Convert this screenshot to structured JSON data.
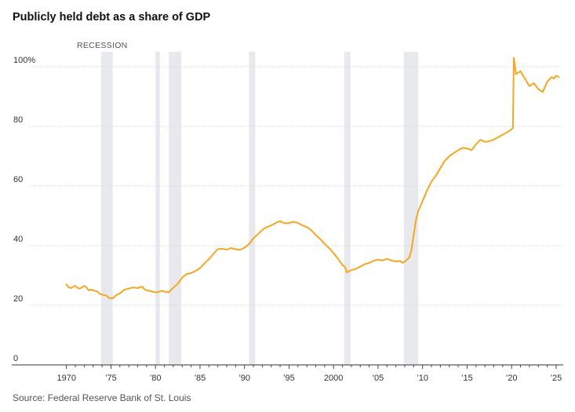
{
  "chart_data": {
    "type": "line",
    "title": "Publicly held debt as a share of GDP",
    "source": "Source: Federal Reserve Bank of St. Louis",
    "recession_label": "RECESSION",
    "xlim": [
      1966.5,
      2025.8
    ],
    "ylim": [
      0,
      105
    ],
    "y_ticks": [
      {
        "value": 0,
        "label": "0"
      },
      {
        "value": 20,
        "label": "20"
      },
      {
        "value": 40,
        "label": "40"
      },
      {
        "value": 60,
        "label": "60"
      },
      {
        "value": 80,
        "label": "80"
      },
      {
        "value": 100,
        "label": "100%"
      }
    ],
    "x_ticks": [
      {
        "value": 1970,
        "label": "1970"
      },
      {
        "value": 1975,
        "label": "’75"
      },
      {
        "value": 1980,
        "label": "’80"
      },
      {
        "value": 1985,
        "label": "’85"
      },
      {
        "value": 1990,
        "label": "’90"
      },
      {
        "value": 1995,
        "label": "’95"
      },
      {
        "value": 2000,
        "label": "2000"
      },
      {
        "value": 2005,
        "label": "’05"
      },
      {
        "value": 2010,
        "label": "’10"
      },
      {
        "value": 2015,
        "label": "’15"
      },
      {
        "value": 2020,
        "label": "’20"
      },
      {
        "value": 2025,
        "label": "’25"
      }
    ],
    "recessions": [
      [
        1973.9,
        1975.2
      ],
      [
        1980.0,
        1980.5
      ],
      [
        1981.5,
        1982.9
      ],
      [
        1990.5,
        1991.2
      ],
      [
        2001.2,
        2001.9
      ],
      [
        2007.9,
        2009.5
      ]
    ],
    "series": [
      {
        "name": "Publicly held debt as a share of GDP",
        "color": "#f5a623",
        "points": [
          [
            1970.0,
            27.0
          ],
          [
            1970.25,
            26.0
          ],
          [
            1970.5,
            25.8
          ],
          [
            1970.75,
            26.2
          ],
          [
            1971.0,
            26.5
          ],
          [
            1971.25,
            25.8
          ],
          [
            1971.5,
            25.6
          ],
          [
            1971.75,
            26.0
          ],
          [
            1972.0,
            26.5
          ],
          [
            1972.25,
            26.0
          ],
          [
            1972.5,
            25.0
          ],
          [
            1972.75,
            25.3
          ],
          [
            1973.0,
            25.0
          ],
          [
            1973.5,
            24.6
          ],
          [
            1973.75,
            23.8
          ],
          [
            1974.0,
            23.6
          ],
          [
            1974.5,
            23.2
          ],
          [
            1974.75,
            22.5
          ],
          [
            1975.0,
            22.3
          ],
          [
            1975.25,
            22.4
          ],
          [
            1975.5,
            23.2
          ],
          [
            1976.0,
            24.0
          ],
          [
            1976.5,
            25.2
          ],
          [
            1977.0,
            25.6
          ],
          [
            1977.5,
            26.0
          ],
          [
            1978.0,
            25.8
          ],
          [
            1978.5,
            26.3
          ],
          [
            1978.75,
            25.4
          ],
          [
            1979.0,
            25.0
          ],
          [
            1979.5,
            24.7
          ],
          [
            1980.0,
            24.3
          ],
          [
            1980.5,
            24.6
          ],
          [
            1980.75,
            24.9
          ],
          [
            1981.0,
            24.6
          ],
          [
            1981.5,
            24.3
          ],
          [
            1981.75,
            25.2
          ],
          [
            1982.0,
            25.9
          ],
          [
            1982.5,
            27.2
          ],
          [
            1983.0,
            29.3
          ],
          [
            1983.5,
            30.5
          ],
          [
            1984.0,
            30.8
          ],
          [
            1984.5,
            31.5
          ],
          [
            1985.0,
            32.5
          ],
          [
            1985.5,
            34.0
          ],
          [
            1986.0,
            35.5
          ],
          [
            1986.5,
            37.2
          ],
          [
            1987.0,
            38.8
          ],
          [
            1987.5,
            39.0
          ],
          [
            1988.0,
            38.6
          ],
          [
            1988.5,
            39.2
          ],
          [
            1989.0,
            38.8
          ],
          [
            1989.5,
            38.6
          ],
          [
            1990.0,
            39.3
          ],
          [
            1990.5,
            40.5
          ],
          [
            1991.0,
            42.5
          ],
          [
            1991.5,
            43.8
          ],
          [
            1992.0,
            45.3
          ],
          [
            1992.5,
            46.2
          ],
          [
            1993.0,
            46.8
          ],
          [
            1993.5,
            47.6
          ],
          [
            1994.0,
            48.2
          ],
          [
            1994.5,
            47.5
          ],
          [
            1995.0,
            47.6
          ],
          [
            1995.5,
            48.0
          ],
          [
            1996.0,
            47.6
          ],
          [
            1996.5,
            46.8
          ],
          [
            1997.0,
            46.2
          ],
          [
            1997.5,
            45.2
          ],
          [
            1998.0,
            43.6
          ],
          [
            1998.5,
            42.2
          ],
          [
            1999.0,
            40.6
          ],
          [
            1999.5,
            39.2
          ],
          [
            2000.0,
            37.5
          ],
          [
            2000.5,
            35.6
          ],
          [
            2001.0,
            33.5
          ],
          [
            2001.3,
            32.8
          ],
          [
            2001.5,
            31.0
          ],
          [
            2001.75,
            31.4
          ],
          [
            2002.0,
            31.8
          ],
          [
            2002.5,
            32.2
          ],
          [
            2003.0,
            33.0
          ],
          [
            2003.5,
            33.8
          ],
          [
            2004.0,
            34.2
          ],
          [
            2004.5,
            34.9
          ],
          [
            2005.0,
            35.3
          ],
          [
            2005.5,
            35.0
          ],
          [
            2006.0,
            35.6
          ],
          [
            2006.5,
            35.0
          ],
          [
            2007.0,
            34.7
          ],
          [
            2007.5,
            34.9
          ],
          [
            2007.75,
            34.2
          ],
          [
            2008.0,
            34.6
          ],
          [
            2008.5,
            36.0
          ],
          [
            2008.75,
            38.5
          ],
          [
            2009.0,
            43.5
          ],
          [
            2009.25,
            48.5
          ],
          [
            2009.5,
            51.5
          ],
          [
            2010.0,
            55.0
          ],
          [
            2010.5,
            58.5
          ],
          [
            2011.0,
            61.5
          ],
          [
            2011.5,
            63.5
          ],
          [
            2012.0,
            66.0
          ],
          [
            2012.5,
            68.5
          ],
          [
            2013.0,
            70.0
          ],
          [
            2013.5,
            71.0
          ],
          [
            2014.0,
            72.0
          ],
          [
            2014.5,
            72.8
          ],
          [
            2015.0,
            72.6
          ],
          [
            2015.5,
            72.0
          ],
          [
            2016.0,
            74.0
          ],
          [
            2016.5,
            75.5
          ],
          [
            2017.0,
            74.8
          ],
          [
            2017.5,
            75.0
          ],
          [
            2018.0,
            75.6
          ],
          [
            2018.5,
            76.4
          ],
          [
            2019.0,
            77.2
          ],
          [
            2019.5,
            78.0
          ],
          [
            2020.0,
            79.0
          ],
          [
            2020.15,
            79.6
          ],
          [
            2020.25,
            103.0
          ],
          [
            2020.5,
            97.5
          ],
          [
            2021.0,
            98.5
          ],
          [
            2021.5,
            96.0
          ],
          [
            2022.0,
            93.5
          ],
          [
            2022.5,
            94.5
          ],
          [
            2023.0,
            92.5
          ],
          [
            2023.5,
            91.5
          ],
          [
            2024.0,
            95.0
          ],
          [
            2024.5,
            96.5
          ],
          [
            2024.75,
            96.0
          ],
          [
            2025.0,
            97.0
          ],
          [
            2025.3,
            96.5
          ]
        ]
      }
    ]
  }
}
